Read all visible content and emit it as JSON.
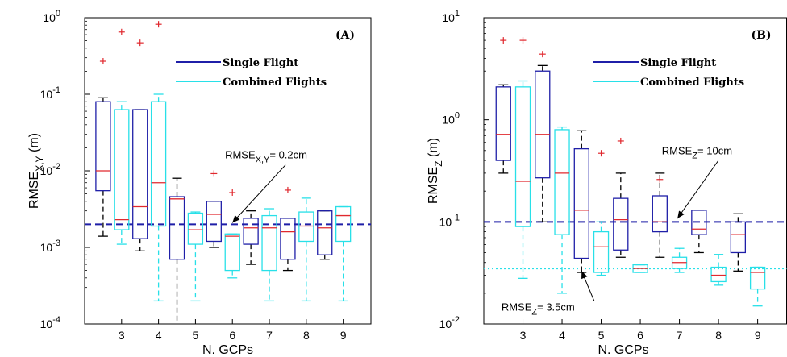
{
  "chart_data": [
    {
      "type": "box",
      "panel_label": "(A)",
      "xlabel": "N. GCPs",
      "ylabel_main": "RMSE",
      "ylabel_sub": "X,Y",
      "ylabel_unit": " (m)",
      "yscale": "log",
      "ylim": [
        0.0001,
        1
      ],
      "xlim": [
        2,
        9.75
      ],
      "xticks": [
        3,
        4,
        5,
        6,
        7,
        8,
        9
      ],
      "yticks": [
        {
          "v": 0.0001,
          "base": "10",
          "exp": "-4"
        },
        {
          "v": 0.001,
          "base": "10",
          "exp": "-3"
        },
        {
          "v": 0.01,
          "base": "10",
          "exp": "-2"
        },
        {
          "v": 0.1,
          "base": "10",
          "exp": "-1"
        },
        {
          "v": 1,
          "base": "10",
          "exp": "0"
        }
      ],
      "legend": [
        {
          "label": "Single Flight",
          "color": "#1f1fa8"
        },
        {
          "label": "Combined Flights",
          "color": "#28e0e8"
        }
      ],
      "reference_lines": [
        {
          "y": 0.002,
          "color": "#1f1fa8",
          "style": "dashed"
        }
      ],
      "annotations": [
        {
          "main": "RMSE",
          "sub": "X,Y",
          "rest": "= 0.2cm",
          "tx": 5.8,
          "ty": 0.0145,
          "ax": 6.0,
          "ay": 0.0021
        }
      ],
      "series": [
        {
          "name": "Single Flight",
          "color": "#1f1fa8",
          "boxes": [
            {
              "x": 2.5,
              "whislo": 0.0014,
              "q1": 0.0055,
              "med": 0.01,
              "q3": 0.08,
              "whishi": 0.09,
              "fliers": [
                0.27
              ]
            },
            {
              "x": 3.5,
              "whislo": 0.0009,
              "q1": 0.0013,
              "med": 0.0034,
              "q3": 0.063,
              "whishi": 0.063,
              "fliers": [
                0.47
              ]
            },
            {
              "x": 4.5,
              "whislo": 0.0001,
              "q1": 0.0007,
              "med": 0.0043,
              "q3": 0.0046,
              "whishi": 0.008,
              "fliers": []
            },
            {
              "x": 5.5,
              "whislo": 0.001,
              "q1": 0.0012,
              "med": 0.0027,
              "q3": 0.004,
              "whishi": 0.004,
              "fliers": [
                0.0092
              ]
            },
            {
              "x": 6.5,
              "whislo": 0.0006,
              "q1": 0.0011,
              "med": 0.0018,
              "q3": 0.0024,
              "whishi": 0.003,
              "fliers": []
            },
            {
              "x": 7.5,
              "whislo": 0.0005,
              "q1": 0.0007,
              "med": 0.0016,
              "q3": 0.0024,
              "whishi": 0.0024,
              "fliers": [
                0.0056
              ]
            },
            {
              "x": 8.5,
              "whislo": 0.0007,
              "q1": 0.0008,
              "med": 0.0018,
              "q3": 0.003,
              "whishi": 0.003,
              "fliers": []
            }
          ]
        },
        {
          "name": "Combined Flights",
          "color": "#28e0e8",
          "boxes": [
            {
              "x": 3.0,
              "whislo": 0.0011,
              "q1": 0.0017,
              "med": 0.0023,
              "q3": 0.063,
              "whishi": 0.08,
              "fliers": [
                0.65
              ]
            },
            {
              "x": 4.0,
              "whislo": 0.0002,
              "q1": 0.0019,
              "med": 0.007,
              "q3": 0.08,
              "whishi": 0.1,
              "fliers": [
                0.82
              ]
            },
            {
              "x": 5.0,
              "whislo": 0.0002,
              "q1": 0.0011,
              "med": 0.0017,
              "q3": 0.0028,
              "whishi": 0.0029,
              "fliers": []
            },
            {
              "x": 6.0,
              "whislo": 0.0004,
              "q1": 0.0005,
              "med": 0.0014,
              "q3": 0.0015,
              "whishi": 0.0015,
              "fliers": [
                0.0052
              ]
            },
            {
              "x": 7.0,
              "whislo": 0.0002,
              "q1": 0.0005,
              "med": 0.0018,
              "q3": 0.0026,
              "whishi": 0.0032,
              "fliers": []
            },
            {
              "x": 8.0,
              "whislo": 0.0002,
              "q1": 0.0012,
              "med": 0.0019,
              "q3": 0.0029,
              "whishi": 0.0044,
              "fliers": []
            },
            {
              "x": 9.0,
              "whislo": 0.0002,
              "q1": 0.0012,
              "med": 0.0026,
              "q3": 0.0034,
              "whishi": 0.0034,
              "fliers": []
            }
          ]
        }
      ]
    },
    {
      "type": "box",
      "panel_label": "(B)",
      "xlabel": "N. GCPs",
      "ylabel_main": "RMSE",
      "ylabel_sub": "Z",
      "ylabel_unit": " (m)",
      "yscale": "log",
      "ylim": [
        0.01,
        10
      ],
      "xlim": [
        2,
        9.75
      ],
      "xticks": [
        3,
        4,
        5,
        6,
        7,
        8,
        9
      ],
      "yticks": [
        {
          "v": 0.01,
          "base": "10",
          "exp": "-2"
        },
        {
          "v": 0.1,
          "base": "10",
          "exp": "-1"
        },
        {
          "v": 1,
          "base": "10",
          "exp": "0"
        },
        {
          "v": 10,
          "base": "10",
          "exp": "1"
        }
      ],
      "legend": [
        {
          "label": "Single Flight",
          "color": "#1f1fa8"
        },
        {
          "label": "Combined Flights",
          "color": "#28e0e8"
        }
      ],
      "reference_lines": [
        {
          "y": 0.1,
          "color": "#1f1fa8",
          "style": "dashed"
        },
        {
          "y": 0.035,
          "color": "#28e0e8",
          "style": "dotted"
        }
      ],
      "annotations": [
        {
          "main": "RMSE",
          "sub": "Z",
          "rest": "= 10cm",
          "tx": 6.55,
          "ty": 0.46,
          "ax": 6.95,
          "ay": 0.108
        },
        {
          "main": "RMSE",
          "sub": "Z",
          "rest": "= 3.5cm",
          "tx": 2.45,
          "ty": 0.0135,
          "ax": 4.5,
          "ay": 0.033
        }
      ],
      "series": [
        {
          "name": "Single Flight",
          "color": "#1f1fa8",
          "boxes": [
            {
              "x": 2.5,
              "whislo": 0.3,
              "q1": 0.4,
              "med": 0.72,
              "q3": 2.1,
              "whishi": 2.2,
              "fliers": [
                6.0
              ]
            },
            {
              "x": 3.5,
              "whislo": 0.1,
              "q1": 0.27,
              "med": 0.72,
              "q3": 3.0,
              "whishi": 3.4,
              "fliers": [
                4.4
              ]
            },
            {
              "x": 4.5,
              "whislo": 0.032,
              "q1": 0.044,
              "med": 0.13,
              "q3": 0.52,
              "whishi": 0.78,
              "fliers": []
            },
            {
              "x": 5.5,
              "whislo": 0.045,
              "q1": 0.053,
              "med": 0.105,
              "q3": 0.17,
              "whishi": 0.3,
              "fliers": [
                0.62
              ]
            },
            {
              "x": 6.5,
              "whislo": 0.045,
              "q1": 0.08,
              "med": 0.1,
              "q3": 0.18,
              "whishi": 0.3,
              "fliers": [
                0.26
              ]
            },
            {
              "x": 7.5,
              "whislo": 0.05,
              "q1": 0.075,
              "med": 0.085,
              "q3": 0.13,
              "whishi": 0.13,
              "fliers": []
            },
            {
              "x": 8.5,
              "whislo": 0.033,
              "q1": 0.05,
              "med": 0.075,
              "q3": 0.1,
              "whishi": 0.12,
              "fliers": []
            }
          ]
        },
        {
          "name": "Combined Flights",
          "color": "#28e0e8",
          "boxes": [
            {
              "x": 3.0,
              "whislo": 0.028,
              "q1": 0.09,
              "med": 0.25,
              "q3": 2.1,
              "whishi": 2.4,
              "fliers": [
                6.0
              ]
            },
            {
              "x": 4.0,
              "whislo": 0.02,
              "q1": 0.075,
              "med": 0.3,
              "q3": 0.8,
              "whishi": 0.85,
              "fliers": []
            },
            {
              "x": 5.0,
              "whislo": 0.03,
              "q1": 0.032,
              "med": 0.057,
              "q3": 0.08,
              "whishi": 0.1,
              "fliers": [
                0.47
              ]
            },
            {
              "x": 6.0,
              "whislo": 0.032,
              "q1": 0.032,
              "med": 0.035,
              "q3": 0.038,
              "whishi": 0.038,
              "fliers": []
            },
            {
              "x": 7.0,
              "whislo": 0.032,
              "q1": 0.035,
              "med": 0.04,
              "q3": 0.045,
              "whishi": 0.055,
              "fliers": []
            },
            {
              "x": 8.0,
              "whislo": 0.024,
              "q1": 0.026,
              "med": 0.03,
              "q3": 0.036,
              "whishi": 0.048,
              "fliers": []
            },
            {
              "x": 9.0,
              "whislo": 0.015,
              "q1": 0.022,
              "med": 0.032,
              "q3": 0.036,
              "whishi": 0.036,
              "fliers": []
            }
          ]
        }
      ]
    }
  ]
}
